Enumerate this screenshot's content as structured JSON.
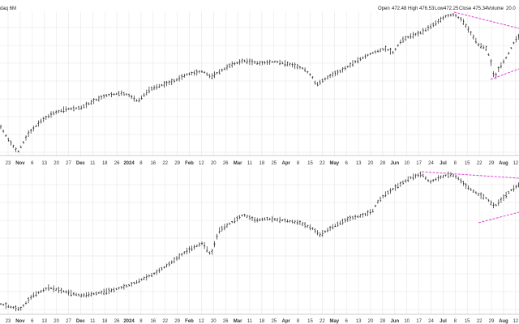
{
  "header": {
    "symbol_text": "daq 6M",
    "open_label": "Open",
    "open": "472.48",
    "high_label": "High",
    "high": "476.53",
    "low_label": "Low",
    "low": "472.25",
    "close_label": "Close",
    "close": "475.34",
    "volume_label": "Volume",
    "volume": "20.0"
  },
  "colors": {
    "bars": "#222222",
    "trendlines": "#e040d8",
    "grid": "#e2e2e2"
  },
  "chart_data": [
    {
      "type": "ohlc",
      "panel": "top",
      "x_tick_labels": [
        "23",
        "Nov",
        "6",
        "13",
        "20",
        "27",
        "Dec",
        "11",
        "18",
        "26",
        "2024",
        "8",
        "16",
        "22",
        "29",
        "Feb",
        "12",
        "20",
        "26",
        "Mar",
        "11",
        "18",
        "25",
        "Apr",
        "8",
        "15",
        "22",
        "May",
        "6",
        "13",
        "20",
        "28",
        "Jun",
        "10",
        "17",
        "24",
        "Jul",
        "8",
        "15",
        "22",
        "29",
        "Aug",
        "12"
      ],
      "bold_labels": [
        "Nov",
        "Dec",
        "2024",
        "Feb",
        "Mar",
        "Apr",
        "May",
        "Jun",
        "Jul",
        "Aug"
      ],
      "price_path": [
        [
          0,
          155
        ],
        [
          10,
          172
        ],
        [
          22,
          188
        ],
        [
          35,
          165
        ],
        [
          50,
          150
        ],
        [
          65,
          140
        ],
        [
          80,
          135
        ],
        [
          100,
          133
        ],
        [
          115,
          125
        ],
        [
          130,
          118
        ],
        [
          150,
          115
        ],
        [
          160,
          118
        ],
        [
          170,
          125
        ],
        [
          185,
          110
        ],
        [
          200,
          105
        ],
        [
          215,
          100
        ],
        [
          230,
          92
        ],
        [
          250,
          88
        ],
        [
          260,
          95
        ],
        [
          265,
          92
        ],
        [
          285,
          80
        ],
        [
          300,
          75
        ],
        [
          320,
          78
        ],
        [
          340,
          76
        ],
        [
          360,
          80
        ],
        [
          375,
          85
        ],
        [
          385,
          95
        ],
        [
          390,
          105
        ],
        [
          400,
          98
        ],
        [
          410,
          92
        ],
        [
          420,
          88
        ],
        [
          440,
          75
        ],
        [
          460,
          65
        ],
        [
          475,
          60
        ],
        [
          485,
          65
        ],
        [
          495,
          50
        ],
        [
          505,
          45
        ],
        [
          520,
          40
        ],
        [
          535,
          30
        ],
        [
          550,
          20
        ],
        [
          560,
          18
        ],
        [
          570,
          25
        ],
        [
          580,
          40
        ],
        [
          590,
          55
        ],
        [
          600,
          60
        ],
        [
          605,
          75
        ],
        [
          610,
          98
        ],
        [
          615,
          85
        ],
        [
          625,
          70
        ],
        [
          635,
          50
        ],
        [
          640,
          45
        ]
      ],
      "trendlines": [
        {
          "from": [
            560,
            15
          ],
          "to": [
            640,
            35
          ]
        },
        {
          "from": [
            605,
            98
          ],
          "to": [
            640,
            85
          ]
        }
      ]
    },
    {
      "type": "ohlc",
      "panel": "bottom",
      "x_tick_labels": [
        "23",
        "Nov",
        "6",
        "13",
        "20",
        "27",
        "Dec",
        "11",
        "18",
        "26",
        "2024",
        "8",
        "16",
        "22",
        "29",
        "Feb",
        "12",
        "20",
        "26",
        "Mar",
        "11",
        "18",
        "25",
        "Apr",
        "8",
        "15",
        "22",
        "May",
        "6",
        "13",
        "20",
        "28",
        "Jun",
        "10",
        "17",
        "24",
        "Jul",
        "8",
        "15",
        "22",
        "29",
        "Aug",
        "12"
      ],
      "bold_labels": [
        "Nov",
        "Dec",
        "2024",
        "Feb",
        "Mar",
        "Apr",
        "May",
        "Jun",
        "Jul",
        "Aug"
      ],
      "price_path": [
        [
          0,
          375
        ],
        [
          10,
          378
        ],
        [
          25,
          382
        ],
        [
          40,
          365
        ],
        [
          60,
          355
        ],
        [
          80,
          360
        ],
        [
          100,
          365
        ],
        [
          120,
          362
        ],
        [
          140,
          358
        ],
        [
          160,
          352
        ],
        [
          175,
          345
        ],
        [
          190,
          338
        ],
        [
          210,
          325
        ],
        [
          230,
          310
        ],
        [
          250,
          300
        ],
        [
          260,
          315
        ],
        [
          270,
          285
        ],
        [
          285,
          275
        ],
        [
          300,
          265
        ],
        [
          315,
          272
        ],
        [
          330,
          270
        ],
        [
          350,
          272
        ],
        [
          370,
          275
        ],
        [
          385,
          282
        ],
        [
          395,
          290
        ],
        [
          410,
          280
        ],
        [
          430,
          270
        ],
        [
          450,
          265
        ],
        [
          460,
          260
        ],
        [
          465,
          250
        ],
        [
          475,
          240
        ],
        [
          490,
          230
        ],
        [
          505,
          220
        ],
        [
          520,
          215
        ],
        [
          530,
          225
        ],
        [
          540,
          220
        ],
        [
          555,
          215
        ],
        [
          565,
          220
        ],
        [
          575,
          230
        ],
        [
          590,
          240
        ],
        [
          600,
          245
        ],
        [
          610,
          255
        ],
        [
          620,
          245
        ],
        [
          630,
          235
        ],
        [
          640,
          228
        ]
      ],
      "trendlines": [
        {
          "from": [
            520,
            212
          ],
          "to": [
            640,
            220
          ]
        },
        {
          "from": [
            590,
            275
          ],
          "to": [
            640,
            262
          ]
        }
      ]
    }
  ]
}
